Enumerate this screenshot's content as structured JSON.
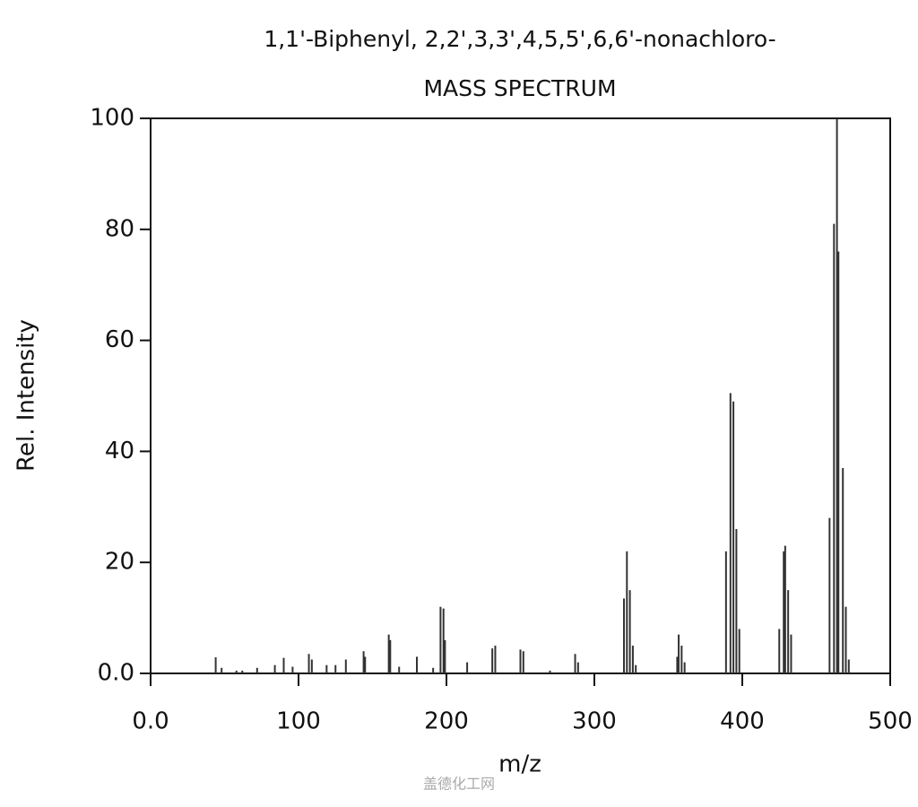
{
  "chart_data": {
    "type": "bar",
    "title": "1,1'-Biphenyl, 2,2',3,3',4,5,5',6,6'-nonachloro-",
    "subtitle": "MASS SPECTRUM",
    "x_label": "m/z",
    "y_label": "Rel. Intensity",
    "watermark": "盖德化工网",
    "color": "#333333",
    "x": [
      44,
      48,
      58,
      62,
      72,
      84,
      90,
      96,
      107,
      109,
      119,
      125,
      132,
      144,
      145,
      161,
      162,
      168,
      180,
      191,
      196,
      198,
      199,
      214,
      231,
      233,
      250,
      252,
      270,
      287,
      289,
      320,
      322,
      324,
      326,
      328,
      356,
      357,
      359,
      361,
      389,
      392,
      394,
      396,
      398,
      425,
      428,
      429,
      431,
      433,
      459,
      462,
      464,
      465,
      468,
      470,
      472
    ],
    "values": [
      2.9,
      1.0,
      0.5,
      0.5,
      1.0,
      1.5,
      2.8,
      1.2,
      3.5,
      2.5,
      1.5,
      1.5,
      2.5,
      4,
      3,
      7,
      6,
      1.2,
      3,
      1,
      12,
      11.7,
      6,
      2,
      4.5,
      5,
      4.3,
      4,
      0.5,
      3.5,
      2,
      13.5,
      22,
      15,
      5,
      1.5,
      3,
      7,
      5,
      2,
      22,
      50.5,
      49,
      26,
      8,
      8,
      22,
      23,
      15,
      7,
      28,
      81,
      100,
      76,
      37,
      12,
      2.5
    ],
    "xlim": [
      0,
      500
    ],
    "xticks": [
      {
        "value": 0,
        "label": "0.0"
      },
      100,
      200,
      300,
      400,
      500
    ],
    "ylim": [
      0,
      100
    ],
    "yticks": [
      {
        "value": 0,
        "label": "0.0"
      },
      20,
      40,
      60,
      80,
      100
    ]
  }
}
